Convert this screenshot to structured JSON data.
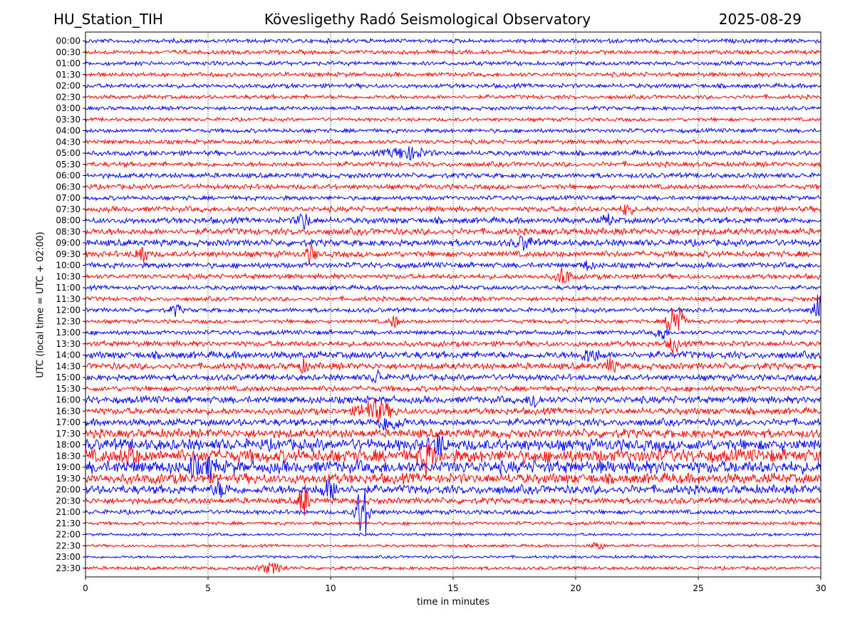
{
  "header": {
    "station": "HU_Station_TIH",
    "observatory": "Kövesligethy Radó Seismological Observatory",
    "date": "2025-08-29"
  },
  "chart_data": {
    "type": "line",
    "title": "Kövesligethy Radó Seismological Observatory",
    "xlabel": "time in minutes",
    "ylabel": "UTC (local time = UTC + 02:00)",
    "xlim": [
      0,
      30
    ],
    "x_ticks": [
      "0",
      "5",
      "10",
      "15",
      "20",
      "25",
      "30"
    ],
    "grid": "vertical dotted lines at 5-minute ticks",
    "colors": {
      "even_rows": "#0000ff",
      "odd_rows": "#ff0000"
    },
    "rows": [
      "00:00",
      "00:30",
      "01:00",
      "01:30",
      "02:00",
      "02:30",
      "03:00",
      "03:30",
      "04:00",
      "04:30",
      "05:00",
      "05:30",
      "06:00",
      "06:30",
      "07:00",
      "07:30",
      "08:00",
      "08:30",
      "09:00",
      "09:30",
      "10:00",
      "10:30",
      "11:00",
      "11:30",
      "12:00",
      "12:30",
      "13:00",
      "13:30",
      "14:00",
      "14:30",
      "15:00",
      "15:30",
      "16:00",
      "16:30",
      "17:00",
      "17:30",
      "18:00",
      "18:30",
      "19:00",
      "19:30",
      "20:00",
      "20:30",
      "21:00",
      "21:30",
      "22:00",
      "22:30",
      "23:00",
      "23:30"
    ],
    "noise_level": [
      0.15,
      0.15,
      0.15,
      0.16,
      0.16,
      0.15,
      0.14,
      0.13,
      0.15,
      0.16,
      0.18,
      0.18,
      0.18,
      0.18,
      0.16,
      0.2,
      0.22,
      0.24,
      0.24,
      0.22,
      0.2,
      0.18,
      0.16,
      0.16,
      0.16,
      0.14,
      0.16,
      0.2,
      0.26,
      0.24,
      0.22,
      0.2,
      0.26,
      0.24,
      0.26,
      0.32,
      0.42,
      0.48,
      0.46,
      0.38,
      0.32,
      0.22,
      0.16,
      0.12,
      0.1,
      0.1,
      0.1,
      0.12
    ],
    "events": [
      {
        "row": "05:00",
        "minute": 13.1,
        "amp": 0.5,
        "dur": 1.2
      },
      {
        "row": "07:30",
        "minute": 22.1,
        "amp": 0.6,
        "dur": 0.3
      },
      {
        "row": "08:00",
        "minute": 8.9,
        "amp": 0.7,
        "dur": 0.4
      },
      {
        "row": "08:00",
        "minute": 21.3,
        "amp": 0.5,
        "dur": 0.3
      },
      {
        "row": "09:00",
        "minute": 17.9,
        "amp": 0.5,
        "dur": 0.6
      },
      {
        "row": "09:30",
        "minute": 2.3,
        "amp": 1.0,
        "dur": 0.3
      },
      {
        "row": "09:30",
        "minute": 9.2,
        "amp": 0.8,
        "dur": 0.3
      },
      {
        "row": "10:00",
        "minute": 20.5,
        "amp": 0.4,
        "dur": 0.3
      },
      {
        "row": "10:30",
        "minute": 19.5,
        "amp": 0.8,
        "dur": 0.4
      },
      {
        "row": "12:00",
        "minute": 3.7,
        "amp": 0.5,
        "dur": 0.3
      },
      {
        "row": "12:00",
        "minute": 29.9,
        "amp": 1.6,
        "dur": 0.3
      },
      {
        "row": "12:30",
        "minute": 12.6,
        "amp": 0.5,
        "dur": 0.3
      },
      {
        "row": "12:30",
        "minute": 23.9,
        "amp": 1.3,
        "dur": 0.3
      },
      {
        "row": "12:30",
        "minute": 24.2,
        "amp": 1.6,
        "dur": 0.3
      },
      {
        "row": "13:00",
        "minute": 23.5,
        "amp": 0.8,
        "dur": 0.3
      },
      {
        "row": "13:30",
        "minute": 24.0,
        "amp": 0.8,
        "dur": 0.3
      },
      {
        "row": "14:00",
        "minute": 20.6,
        "amp": 0.5,
        "dur": 0.6
      },
      {
        "row": "14:30",
        "minute": 8.9,
        "amp": 0.5,
        "dur": 0.3
      },
      {
        "row": "14:30",
        "minute": 21.4,
        "amp": 0.5,
        "dur": 0.4
      },
      {
        "row": "15:00",
        "minute": 11.9,
        "amp": 0.6,
        "dur": 0.3
      },
      {
        "row": "16:00",
        "minute": 18.3,
        "amp": 0.8,
        "dur": 0.3
      },
      {
        "row": "16:30",
        "minute": 11.8,
        "amp": 0.9,
        "dur": 1.0
      },
      {
        "row": "17:00",
        "minute": 12.4,
        "amp": 0.6,
        "dur": 0.8
      },
      {
        "row": "18:00",
        "minute": 14.4,
        "amp": 0.8,
        "dur": 0.4
      },
      {
        "row": "18:30",
        "minute": 13.9,
        "amp": 1.1,
        "dur": 0.5
      },
      {
        "row": "18:30",
        "minute": 1.8,
        "amp": 0.7,
        "dur": 0.4
      },
      {
        "row": "19:00",
        "minute": 4.4,
        "amp": 0.8,
        "dur": 0.3
      },
      {
        "row": "19:00",
        "minute": 5.1,
        "amp": 0.8,
        "dur": 0.3
      },
      {
        "row": "20:00",
        "minute": 10.0,
        "amp": 0.7,
        "dur": 0.6
      },
      {
        "row": "20:00",
        "minute": 5.5,
        "amp": 0.5,
        "dur": 0.5
      },
      {
        "row": "20:30",
        "minute": 8.9,
        "amp": 1.6,
        "dur": 0.3
      },
      {
        "row": "21:00",
        "minute": 11.3,
        "amp": 2.6,
        "dur": 0.4
      },
      {
        "row": "22:30",
        "minute": 20.9,
        "amp": 0.3,
        "dur": 0.4
      },
      {
        "row": "23:30",
        "minute": 7.6,
        "amp": 0.4,
        "dur": 0.8
      }
    ]
  }
}
